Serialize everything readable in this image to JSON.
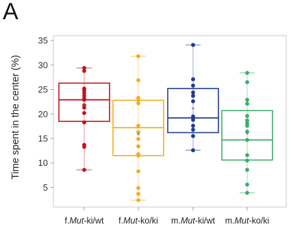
{
  "panel_label": "A",
  "chart_data": {
    "type": "box",
    "ylabel": "Time spent in the center (%)",
    "ylim": [
      1,
      36
    ],
    "yticks": [
      5,
      10,
      15,
      20,
      25,
      30,
      35
    ],
    "grid": false,
    "categories": [
      {
        "prefix": "f.",
        "gene": "Mut",
        "suffix": "-ki/wt"
      },
      {
        "prefix": "f.",
        "gene": "Mut",
        "suffix": "-ko/ki"
      },
      {
        "prefix": "m.",
        "gene": "Mut",
        "suffix": "-ki/wt"
      },
      {
        "prefix": "m.",
        "gene": "Mut",
        "suffix": "-ko/ki"
      }
    ],
    "series": [
      {
        "color": "#c0141c",
        "box": {
          "whisker_low": 8.6,
          "q1": 18.5,
          "median": 22.9,
          "q3": 26.3,
          "whisker_high": 29.4,
          "mean": 21.7
        },
        "points": [
          29.4,
          28.8,
          25.2,
          24.8,
          24.3,
          23.7,
          23.1,
          22.9,
          21.8,
          21.3,
          20.2,
          18.3,
          13.7,
          13.3,
          8.6
        ]
      },
      {
        "color": "#f5ac1c",
        "box": {
          "whisker_low": 2.4,
          "q1": 11.5,
          "median": 17.2,
          "q3": 22.8,
          "whisker_high": 31.8,
          "mean": 15.8
        },
        "points": [
          31.8,
          26.9,
          23.3,
          22.9,
          22.2,
          17.6,
          16.3,
          14.9,
          13.4,
          11.8,
          11.5,
          8.3,
          4.9,
          3.7,
          2.4
        ]
      },
      {
        "color": "#1e3a8c",
        "box": {
          "whisker_low": 12.6,
          "q1": 16.2,
          "median": 19.2,
          "q3": 25.2,
          "whisker_high": 34.1,
          "mean": 21.0
        },
        "points": [
          34.1,
          27.1,
          25.8,
          24.4,
          23.7,
          22.6,
          19.5,
          18.8,
          17.6,
          16.8,
          15.5,
          12.6
        ]
      },
      {
        "color": "#3aad6b",
        "box": {
          "whisker_low": 3.9,
          "q1": 10.6,
          "median": 14.7,
          "q3": 20.7,
          "whisker_high": 28.4,
          "mean": 15.9
        },
        "points": [
          28.4,
          26.5,
          22.9,
          22.1,
          19.6,
          18.7,
          18.1,
          17.6,
          16.4,
          14.7,
          11.6,
          10.5,
          8.6,
          5.6,
          3.9
        ]
      }
    ]
  }
}
